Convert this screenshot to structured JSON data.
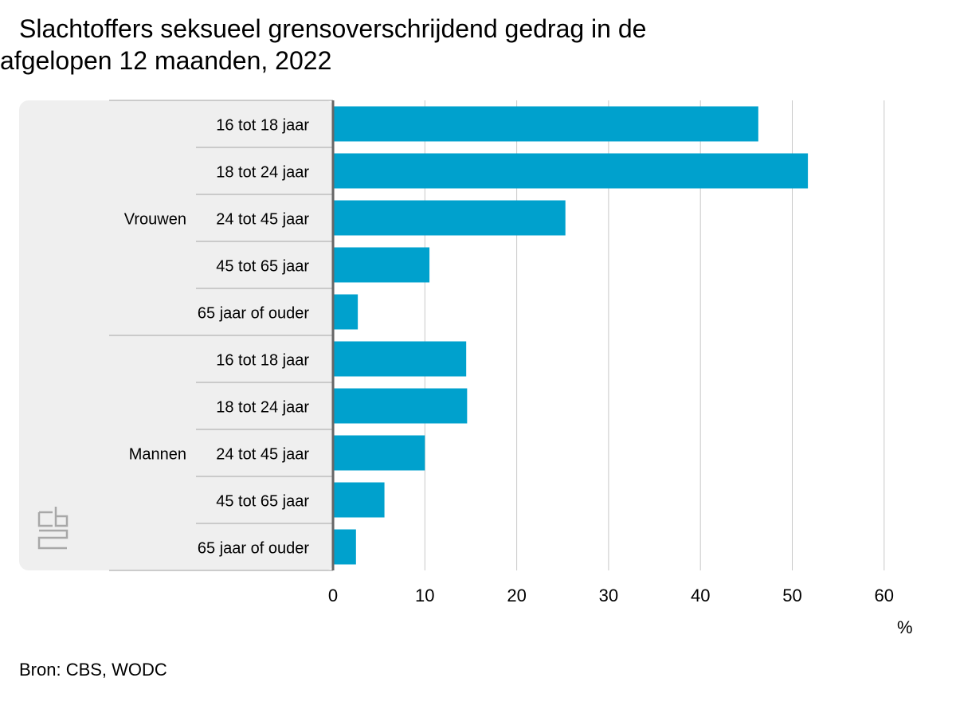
{
  "chart_data": {
    "type": "bar",
    "orientation": "horizontal",
    "title": "Slachtoffers seksueel grensoverschrijdend gedrag in de afgelopen 12 maanden, 2022",
    "groups": [
      {
        "name": "Vrouwen",
        "categories": [
          "16 tot 18 jaar",
          "18 tot 24 jaar",
          "24 tot 45 jaar",
          "45 tot 65 jaar",
          "65 jaar of ouder"
        ],
        "values": [
          46.3,
          51.7,
          25.3,
          10.5,
          2.7
        ]
      },
      {
        "name": "Mannen",
        "categories": [
          "16 tot 18 jaar",
          "18 tot 24 jaar",
          "24 tot 45 jaar",
          "45 tot 65 jaar",
          "65 jaar of ouder"
        ],
        "values": [
          14.5,
          14.6,
          10.0,
          5.6,
          2.5
        ]
      }
    ],
    "xlim": [
      0,
      60
    ],
    "xticks": [
      0,
      10,
      20,
      30,
      40,
      50,
      60
    ],
    "xlabel": "%",
    "grid": true,
    "bar_color": "#00a1cd"
  },
  "source": "Bron: CBS, WODC",
  "logo": "cbs-logo"
}
